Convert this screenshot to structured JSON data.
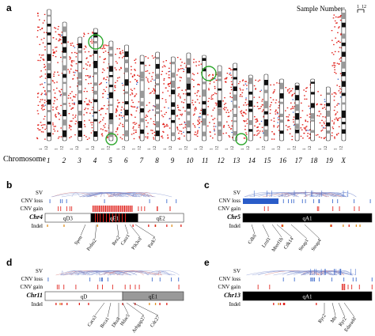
{
  "panel_a": {
    "label": "a",
    "sample_number_label": "Sample Number:",
    "legend_ticks": [
      "1",
      "12"
    ],
    "row_label": "Chromosome",
    "chromosomes": [
      "1",
      "2",
      "3",
      "4",
      "5",
      "6",
      "7",
      "8",
      "9",
      "10",
      "11",
      "12",
      "13",
      "14",
      "15",
      "16",
      "17",
      "18",
      "19",
      "X"
    ],
    "scale_ticks": [
      "1",
      "12"
    ]
  },
  "track_labels": {
    "sv": "SV",
    "cnv_loss": "CNV loss",
    "cnv_gain": "CNV gain",
    "indel": "Indel"
  },
  "panel_b": {
    "label": "b",
    "chromosome": "Chr4",
    "bands": [
      "qD3",
      "qE1",
      "qE2"
    ],
    "genes": [
      "Spen",
      "Prdm2",
      "Rex2",
      "Casz1",
      "Pik3cd",
      "Park7"
    ]
  },
  "panel_c": {
    "label": "c",
    "chromosome": "Chr5",
    "bands": [
      "qA1"
    ],
    "genes": [
      "Cdk6",
      "Lrrd1",
      "Mterf1b",
      "Cdk14",
      "Steap1",
      "Steap4"
    ]
  },
  "panel_d": {
    "label": "d",
    "chromosome": "Chr11",
    "bands": [
      "qD",
      "qE1"
    ],
    "genes": [
      "Cacs3",
      "Brca1",
      "Dhx8",
      "Hdac5",
      "Arhgap27",
      "Cdc27"
    ]
  },
  "panel_e": {
    "label": "e",
    "chromosome": "Chr13",
    "bands": [
      "qA1"
    ],
    "genes": [
      "Ryr2",
      "Mtr",
      "Ryr2",
      "Edaradd"
    ]
  },
  "colors": {
    "gain": "#e0201a",
    "loss": "#2a5cc8",
    "sv_line": "#7d8fd0",
    "highlight": "#2ea82e"
  }
}
